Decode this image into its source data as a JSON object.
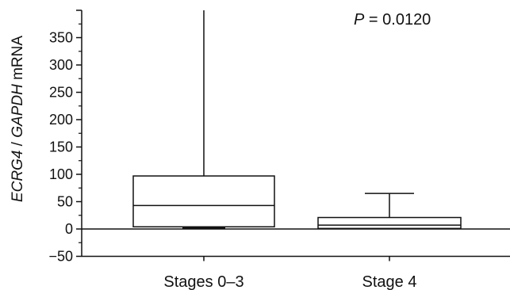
{
  "chart_data": {
    "type": "box",
    "ylabel": {
      "gene1": "ECRG4",
      "separator": " / ",
      "gene2": "GAPDH",
      "suffix": " mRNA"
    },
    "annotation": {
      "p_symbol": "P",
      "p_value": " = 0.0120"
    },
    "ylim": [
      -50,
      400
    ],
    "y_ticks": [
      "−50",
      "0",
      "50",
      "100",
      "150",
      "200",
      "250",
      "300",
      "350"
    ],
    "y_tick_values": [
      -50,
      0,
      50,
      100,
      150,
      200,
      250,
      300,
      350
    ],
    "categories": [
      "Stages 0–3",
      "Stage 4"
    ],
    "boxes": [
      {
        "category": "Stages 0–3",
        "min": 2,
        "q1": 4,
        "median": 43,
        "q3": 97,
        "max": 400
      },
      {
        "category": "Stage 4",
        "min": 0,
        "q1": 1,
        "median": 7,
        "q3": 21,
        "max": 65
      }
    ],
    "zero_line": true,
    "grid": false
  }
}
